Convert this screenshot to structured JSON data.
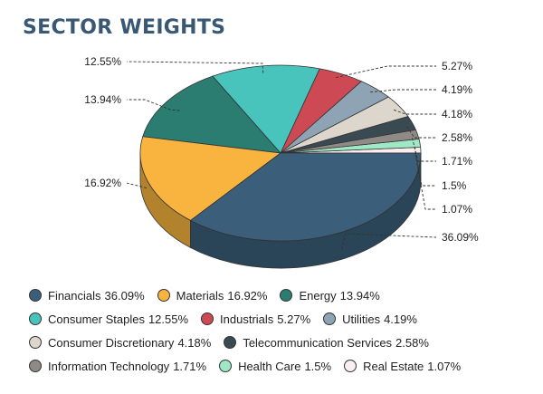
{
  "header": {
    "title": "SECTOR WEIGHTS"
  },
  "colors": {
    "Financials": "#3b5f7a",
    "Materials": "#f9b43f",
    "Energy": "#2a7d70",
    "Consumer Staples": "#49c4bc",
    "Industrials": "#cd4a55",
    "Utilities": "#8ea4b4",
    "Consumer Discretionary": "#dcd6cc",
    "Telecommunication Services": "#3a4a52",
    "Information Technology": "#908a86",
    "Health Care": "#9fe8c6",
    "Real Estate": "#fbeeee"
  },
  "chart_data": {
    "type": "pie",
    "title": "SECTOR WEIGHTS",
    "style": "3d",
    "categories": [
      "Financials",
      "Materials",
      "Energy",
      "Consumer Staples",
      "Industrials",
      "Utilities",
      "Consumer Discretionary",
      "Telecommunication Services",
      "Information Technology",
      "Health Care",
      "Real Estate"
    ],
    "values": [
      36.09,
      16.92,
      13.94,
      12.55,
      5.27,
      4.19,
      4.18,
      2.58,
      1.71,
      1.5,
      1.07
    ],
    "labels": [
      "36.09%",
      "16.92%",
      "13.94%",
      "12.55%",
      "5.27%",
      "4.19%",
      "4.18%",
      "2.58%",
      "1.71%",
      "1.5%",
      "1.07%"
    ],
    "legend": [
      {
        "name": "Financials",
        "value": "36.09%"
      },
      {
        "name": "Materials",
        "value": "16.92%"
      },
      {
        "name": "Energy",
        "value": "13.94%"
      },
      {
        "name": "Consumer Staples",
        "value": "12.55%"
      },
      {
        "name": "Industrials",
        "value": "5.27%"
      },
      {
        "name": "Utilities",
        "value": "4.19%"
      },
      {
        "name": "Consumer Discretionary",
        "value": "4.18%"
      },
      {
        "name": "Telecommunication Services",
        "value": "2.58%"
      },
      {
        "name": "Information Technology",
        "value": "1.71%"
      },
      {
        "name": "Health Care",
        "value": "1.5%"
      },
      {
        "name": "Real Estate",
        "value": "1.07%"
      }
    ],
    "legend_position": "bottom"
  }
}
